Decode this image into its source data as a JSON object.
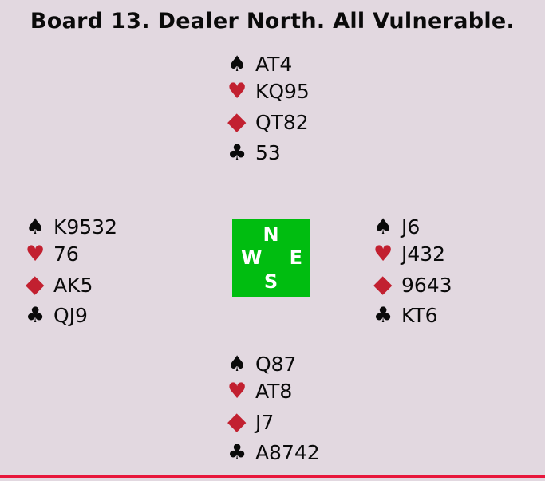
{
  "title": "Board 13. Dealer North. All Vulnerable.",
  "colors": {
    "background": "#e2d8e0",
    "text": "#0a0a0a",
    "suit_red": "#c22030",
    "suit_black": "#0a0a0a",
    "compass_green": "#00bd10",
    "compass_text": "#ffffff",
    "bottom_line": "#e8173c"
  },
  "suit_symbols": {
    "spade": "♠",
    "heart": "♥",
    "diamond": "◆",
    "club": "♣"
  },
  "compass": {
    "north_label": "N",
    "west_label": "W",
    "east_label": "E",
    "south_label": "S"
  },
  "hands": {
    "north": {
      "spades": "AT4",
      "hearts": "KQ95",
      "diamonds": "QT82",
      "clubs": "53"
    },
    "west": {
      "spades": "K9532",
      "hearts": "76",
      "diamonds": "AK5",
      "clubs": "QJ9"
    },
    "east": {
      "spades": "J6",
      "hearts": "J432",
      "diamonds": "9643",
      "clubs": "KT6"
    },
    "south": {
      "spades": "Q87",
      "hearts": "AT8",
      "diamonds": "J7",
      "clubs": "A8742"
    }
  }
}
